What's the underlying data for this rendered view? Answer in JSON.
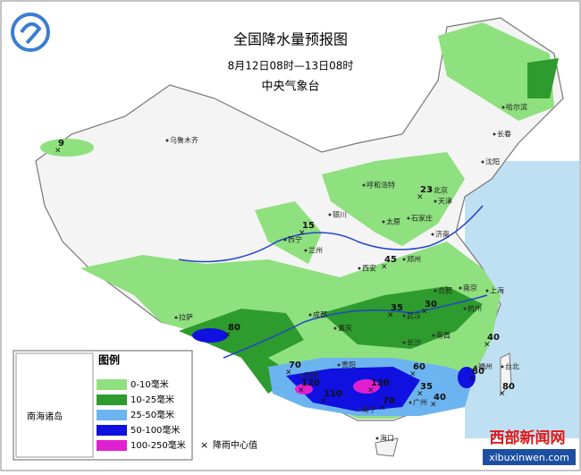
{
  "header": {
    "title": "全国降水量预报图",
    "period": "8月12日08时—13日08时",
    "issuer": "中央气象台"
  },
  "legend": {
    "title": "图例",
    "items": [
      "0-10毫米",
      "10-25毫米",
      "25-50毫米",
      "50-100毫米",
      "100-250毫米"
    ],
    "center_label": "降雨中心值"
  },
  "inset_label": "南海诸岛",
  "cities": [
    "乌鲁木齐",
    "哈尔滨",
    "长春",
    "沈阳",
    "呼和浩特",
    "北京",
    "天津",
    "石家庄",
    "太原",
    "济南",
    "银川",
    "西宁",
    "兰州",
    "西安",
    "郑州",
    "合肥",
    "南京",
    "上海",
    "杭州",
    "武汉",
    "成都",
    "重庆",
    "长沙",
    "南昌",
    "福州",
    "贵阳",
    "昆明",
    "南宁",
    "广州",
    "海口",
    "拉萨",
    "台北"
  ],
  "rain_centers": [
    9,
    23,
    15,
    45,
    35,
    30,
    80,
    40,
    70,
    120,
    110,
    120,
    60,
    35,
    40,
    80,
    80,
    70
  ],
  "watermark": {
    "name": "西部新闻网",
    "url": "xibuxinwen.com"
  }
}
